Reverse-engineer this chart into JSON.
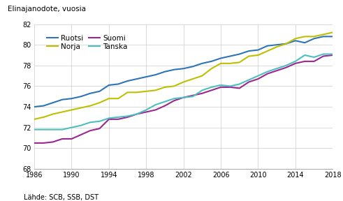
{
  "title": "Elinajanodote, vuosia",
  "source": "Lähde: SCB, SSB, DST",
  "years": [
    1986,
    1987,
    1988,
    1989,
    1990,
    1991,
    1992,
    1993,
    1994,
    1995,
    1996,
    1997,
    1998,
    1999,
    2000,
    2001,
    2002,
    2003,
    2004,
    2005,
    2006,
    2007,
    2008,
    2009,
    2010,
    2011,
    2012,
    2013,
    2014,
    2015,
    2016,
    2017,
    2018
  ],
  "ruotsi": [
    74.0,
    74.1,
    74.4,
    74.7,
    74.8,
    75.0,
    75.3,
    75.5,
    76.1,
    76.2,
    76.5,
    76.7,
    76.9,
    77.1,
    77.4,
    77.6,
    77.7,
    77.9,
    78.2,
    78.4,
    78.7,
    78.9,
    79.1,
    79.4,
    79.5,
    79.9,
    80.0,
    80.1,
    80.4,
    80.2,
    80.6,
    80.8,
    80.8
  ],
  "suomi": [
    70.5,
    70.5,
    70.6,
    70.9,
    70.9,
    71.3,
    71.7,
    71.9,
    72.8,
    72.8,
    73.0,
    73.3,
    73.5,
    73.7,
    74.1,
    74.6,
    74.9,
    75.1,
    75.3,
    75.6,
    75.9,
    75.9,
    75.8,
    76.4,
    76.7,
    77.2,
    77.5,
    77.8,
    78.2,
    78.4,
    78.4,
    78.9,
    79.0
  ],
  "norja": [
    72.8,
    73.0,
    73.3,
    73.5,
    73.7,
    73.9,
    74.1,
    74.4,
    74.8,
    74.8,
    75.4,
    75.4,
    75.5,
    75.6,
    75.9,
    76.0,
    76.4,
    76.7,
    77.0,
    77.7,
    78.2,
    78.2,
    78.3,
    78.9,
    79.0,
    79.4,
    79.8,
    80.1,
    80.6,
    80.8,
    80.8,
    81.0,
    81.2
  ],
  "tanska": [
    71.8,
    71.8,
    71.8,
    71.8,
    72.0,
    72.2,
    72.5,
    72.6,
    72.9,
    73.0,
    73.1,
    73.3,
    73.7,
    74.2,
    74.5,
    74.8,
    74.9,
    75.0,
    75.6,
    75.9,
    76.1,
    76.0,
    76.2,
    76.6,
    77.0,
    77.4,
    77.7,
    78.0,
    78.4,
    79.0,
    78.8,
    79.1,
    79.1
  ],
  "colors": {
    "ruotsi": "#2E75B6",
    "suomi": "#9B2791",
    "norja": "#BFBF00",
    "tanska": "#4DBFBF"
  },
  "ylim": [
    68,
    82
  ],
  "yticks": [
    68,
    70,
    72,
    74,
    76,
    78,
    80,
    82
  ],
  "xticks": [
    1986,
    1990,
    1994,
    1998,
    2002,
    2006,
    2010,
    2014,
    2018
  ],
  "xlim": [
    1986,
    2018
  ],
  "linewidth": 1.5,
  "grid_color": "#cccccc",
  "spine_color": "#aaaaaa",
  "tick_fontsize": 7,
  "label_fontsize": 7.5,
  "source_fontsize": 7
}
